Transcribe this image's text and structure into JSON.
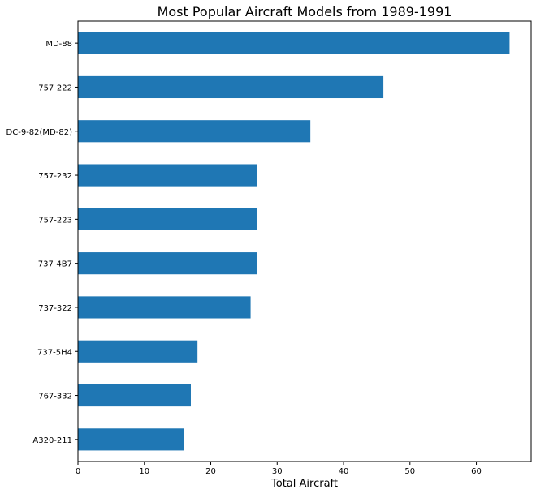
{
  "chart_data": {
    "type": "bar",
    "orientation": "horizontal",
    "title": "Most Popular Aircraft Models from 1989-1991",
    "xlabel": "Total Aircraft",
    "ylabel": "",
    "categories": [
      "MD-88",
      "757-222",
      "DC-9-82(MD-82)",
      "757-232",
      "757-223",
      "737-4B7",
      "737-322",
      "737-5H4",
      "767-332",
      "A320-211"
    ],
    "values": [
      65,
      46,
      35,
      27,
      27,
      27,
      26,
      18,
      17,
      16
    ],
    "xlim": [
      0,
      68.25
    ],
    "xticks": [
      0,
      10,
      20,
      30,
      40,
      50,
      60
    ],
    "grid": false,
    "legend": "none",
    "colors": {
      "bar": "#1f77b4",
      "axis": "#000000",
      "background": "#ffffff"
    }
  }
}
